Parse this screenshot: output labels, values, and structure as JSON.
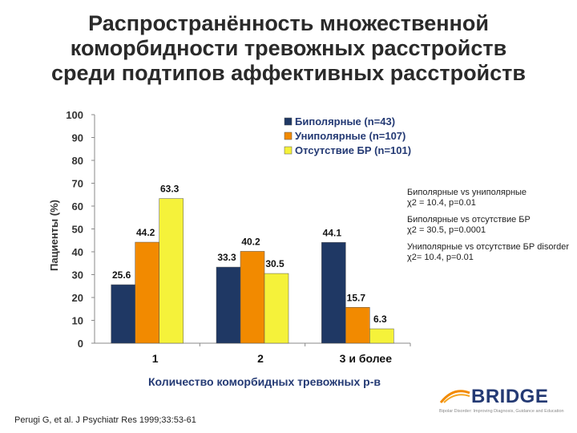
{
  "title_lines": [
    "Распространённость множественной",
    "коморбидности тревожных расстройств",
    "среди подтипов аффективных расстройств"
  ],
  "chart_data": {
    "type": "bar",
    "categories": [
      "1",
      "2",
      "3 и более"
    ],
    "series": [
      {
        "name": "Биполярные (n=43)",
        "color": "#1f3864",
        "values": [
          25.6,
          33.3,
          44.1
        ]
      },
      {
        "name": "Униполярные (n=107)",
        "color": "#f28a00",
        "values": [
          44.2,
          40.2,
          15.7
        ]
      },
      {
        "name": "Отсутствие БР (n=101)",
        "color": "#f5f23a",
        "values": [
          63.3,
          30.5,
          6.3
        ]
      }
    ],
    "data_labels": [
      [
        "25.6",
        "33.3",
        "44.1"
      ],
      [
        "44.2",
        "40.2",
        "15.7"
      ],
      [
        "63.3",
        "30.5",
        "6.3"
      ]
    ],
    "xlabel": "Количество коморбидных тревожных р-в",
    "ylabel": "Пациенты (%)",
    "ylim": [
      0,
      100
    ],
    "yticks": [
      "0",
      "10",
      "20",
      "30",
      "40",
      "50",
      "60",
      "70",
      "80",
      "90",
      "100"
    ],
    "grid": false,
    "legend_position": "top-right"
  },
  "stats": [
    {
      "line1": "Биполярные vs униполярные",
      "line2": "χ2 = 10.4, p=0.01"
    },
    {
      "line1": "Биполярные vs отсутствие БР",
      "line2": "χ2 = 30.5, p=0.0001"
    },
    {
      "line1": "Униполярные vs отсутствие БР disorder",
      "line2": "χ2= 10.4, p=0.01"
    }
  ],
  "citation": "Perugi G, et al. J Psychiatr Res 1999;33:53-61",
  "logo": {
    "word": "BRIDGE",
    "tagline": "Bipolar Disorder: Improving Diagnosis, Guidance and Education"
  }
}
